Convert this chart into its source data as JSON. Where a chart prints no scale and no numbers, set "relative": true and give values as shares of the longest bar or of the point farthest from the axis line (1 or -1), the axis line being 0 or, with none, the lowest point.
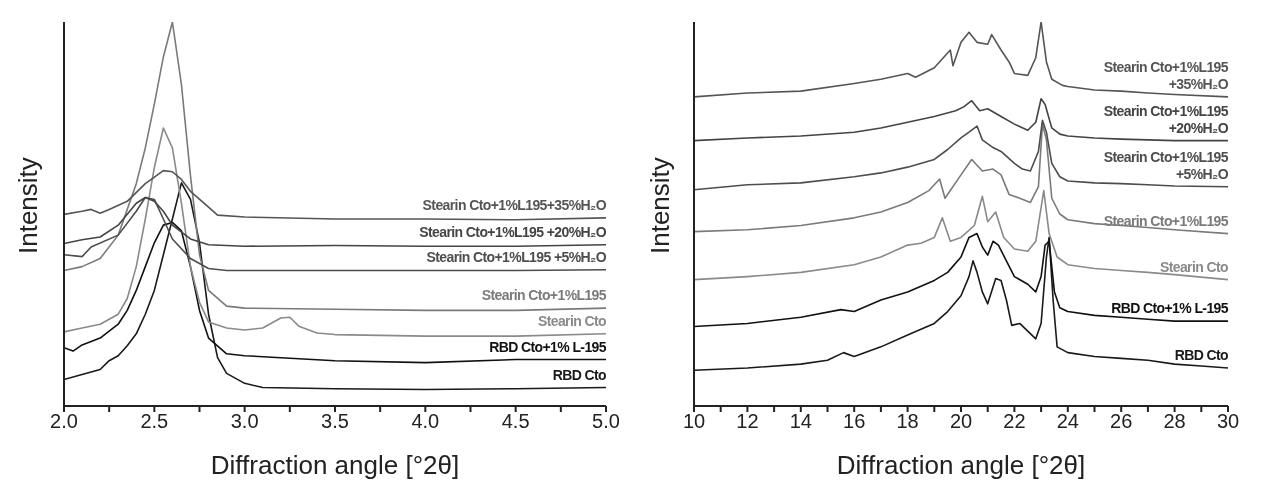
{
  "chart_data": [
    {
      "type": "line",
      "relative": true,
      "xlabel": "Diffraction angle [°2θ]",
      "ylabel": "Intensity",
      "xlim": [
        2,
        5
      ],
      "xticks": [
        {
          "value": 2,
          "label": "2.0"
        },
        {
          "value": 2.25,
          "label": null
        },
        {
          "value": 2.5,
          "label": "2.5"
        },
        {
          "value": 2.75,
          "label": null
        },
        {
          "value": 3,
          "label": "3.0"
        },
        {
          "value": 3.25,
          "label": null
        },
        {
          "value": 3.5,
          "label": "3.5"
        },
        {
          "value": 3.75,
          "label": null
        },
        {
          "value": 4,
          "label": "4.0"
        },
        {
          "value": 4.25,
          "label": null
        },
        {
          "value": 4.5,
          "label": "4.5"
        },
        {
          "value": 4.75,
          "label": null
        },
        {
          "value": 5,
          "label": "5.0"
        }
      ],
      "series": [
        {
          "name": "RBD Cto",
          "color": "#1a1a1a",
          "x": [
            2,
            2.1,
            2.2,
            2.25,
            2.3,
            2.35,
            2.4,
            2.45,
            2.5,
            2.55,
            2.6,
            2.65,
            2.7,
            2.75,
            2.8,
            2.85,
            2.9,
            3,
            3.1,
            3.5,
            4,
            4.5,
            5
          ],
          "values": [
            0.069,
            0.082,
            0.095,
            0.118,
            0.131,
            0.157,
            0.188,
            0.239,
            0.301,
            0.394,
            0.487,
            0.581,
            0.538,
            0.425,
            0.239,
            0.126,
            0.085,
            0.059,
            0.048,
            0.045,
            0.043,
            0.045,
            0.048
          ]
        },
        {
          "name": "RBD Cto+1% L-195",
          "color": "#111111",
          "x": [
            2,
            2.05,
            2.1,
            2.2,
            2.3,
            2.35,
            2.4,
            2.45,
            2.5,
            2.55,
            2.6,
            2.65,
            2.7,
            2.75,
            2.8,
            2.9,
            3,
            3.5,
            4,
            4.5,
            5
          ],
          "values": [
            0.152,
            0.143,
            0.159,
            0.177,
            0.213,
            0.249,
            0.301,
            0.363,
            0.425,
            0.471,
            0.478,
            0.456,
            0.363,
            0.249,
            0.177,
            0.136,
            0.131,
            0.118,
            0.113,
            0.121,
            0.121
          ]
        },
        {
          "name": "Stearin Cto",
          "color": "#8a8a8a",
          "x": [
            2,
            2.1,
            2.2,
            2.3,
            2.35,
            2.4,
            2.45,
            2.5,
            2.55,
            2.6,
            2.65,
            2.7,
            2.75,
            2.8,
            2.9,
            3,
            3.1,
            3.2,
            3.25,
            3.3,
            3.4,
            3.5,
            4,
            4.5,
            5
          ],
          "values": [
            0.193,
            0.203,
            0.213,
            0.239,
            0.28,
            0.363,
            0.487,
            0.621,
            0.724,
            0.672,
            0.528,
            0.363,
            0.27,
            0.219,
            0.203,
            0.198,
            0.203,
            0.229,
            0.231,
            0.208,
            0.19,
            0.186,
            0.182,
            0.182,
            0.188
          ]
        },
        {
          "name": "Stearin Cto+1%L195",
          "color": "#7a7a7a",
          "x": [
            2,
            2.1,
            2.2,
            2.3,
            2.4,
            2.45,
            2.5,
            2.55,
            2.6,
            2.65,
            2.7,
            2.75,
            2.8,
            2.9,
            3,
            3.5,
            4,
            4.5,
            5
          ],
          "values": [
            0.353,
            0.363,
            0.384,
            0.445,
            0.579,
            0.672,
            0.786,
            0.909,
            1,
            0.837,
            0.6,
            0.394,
            0.301,
            0.26,
            0.255,
            0.252,
            0.249,
            0.249,
            0.255
          ]
        },
        {
          "name": "Stearin Cto+1%L195 +5%H₂O",
          "color": "#4d4d4d",
          "x": [
            2,
            2.1,
            2.15,
            2.3,
            2.4,
            2.45,
            2.5,
            2.55,
            2.6,
            2.7,
            2.8,
            2.9,
            3,
            3.5,
            4,
            4.5,
            5
          ],
          "values": [
            0.394,
            0.389,
            0.414,
            0.445,
            0.507,
            0.543,
            0.538,
            0.487,
            0.435,
            0.384,
            0.358,
            0.353,
            0.353,
            0.353,
            0.353,
            0.353,
            0.355
          ]
        },
        {
          "name": "Stearin Cto+1%L195 +20%H₂O",
          "color": "#444444",
          "x": [
            2,
            2.1,
            2.2,
            2.3,
            2.4,
            2.45,
            2.5,
            2.55,
            2.6,
            2.7,
            2.8,
            3,
            3.5,
            4,
            4.5,
            5
          ],
          "values": [
            0.423,
            0.433,
            0.44,
            0.471,
            0.528,
            0.543,
            0.533,
            0.507,
            0.471,
            0.435,
            0.42,
            0.416,
            0.418,
            0.416,
            0.416,
            0.42
          ]
        },
        {
          "name": "Stearin Cto+1%L195+35%H₂O",
          "color": "#555555",
          "x": [
            2,
            2.1,
            2.15,
            2.2,
            2.25,
            2.35,
            2.45,
            2.55,
            2.6,
            2.65,
            2.7,
            2.8,
            2.85,
            3,
            3.5,
            4,
            4.5,
            5
          ],
          "values": [
            0.499,
            0.507,
            0.512,
            0.502,
            0.512,
            0.533,
            0.579,
            0.613,
            0.61,
            0.59,
            0.559,
            0.518,
            0.497,
            0.492,
            0.487,
            0.487,
            0.485,
            0.49
          ]
        }
      ]
    },
    {
      "type": "line",
      "relative": true,
      "xlabel": "Diffraction angle [°2θ]",
      "ylabel": "Intensity",
      "xlim": [
        10,
        30
      ],
      "xticks": [
        10,
        {
          "value": 11,
          "label": null
        },
        12,
        {
          "value": 13,
          "label": null
        },
        14,
        {
          "value": 15,
          "label": null
        },
        16,
        {
          "value": 17,
          "label": null
        },
        18,
        {
          "value": 19,
          "label": null
        },
        20,
        {
          "value": 21,
          "label": null
        },
        22,
        {
          "value": 23,
          "label": null
        },
        24,
        {
          "value": 25,
          "label": null
        },
        26,
        {
          "value": 27,
          "label": null
        },
        28,
        {
          "value": 29,
          "label": null
        },
        30
      ],
      "series": [
        {
          "name": "RBD Cto",
          "color": "#1a1a1a",
          "x": [
            10,
            12,
            14,
            15,
            15.6,
            16,
            17,
            18,
            19,
            19.5,
            20,
            20.3,
            20.45,
            20.6,
            20.8,
            21,
            21.3,
            21.5,
            21.7,
            21.9,
            22.2,
            22.5,
            22.8,
            23,
            23.2,
            23.3,
            23.45,
            23.6,
            24,
            25,
            26,
            27,
            28,
            29,
            30
          ],
          "values": [
            0.093,
            0.099,
            0.109,
            0.119,
            0.139,
            0.129,
            0.154,
            0.185,
            0.215,
            0.246,
            0.287,
            0.337,
            0.378,
            0.348,
            0.297,
            0.266,
            0.332,
            0.327,
            0.276,
            0.21,
            0.215,
            0.195,
            0.175,
            0.215,
            0.388,
            0.439,
            0.276,
            0.154,
            0.139,
            0.129,
            0.124,
            0.119,
            0.109,
            0.104,
            0.099
          ]
        },
        {
          "name": "RBD Cto+1% L-195",
          "color": "#111111",
          "x": [
            10,
            12,
            14,
            15.5,
            16,
            17,
            18,
            19,
            19.5,
            20,
            20.3,
            20.6,
            20.8,
            21,
            21.2,
            21.4,
            21.7,
            22,
            22.5,
            22.8,
            23,
            23.15,
            23.3,
            23.5,
            23.7,
            24,
            25,
            26,
            27,
            28,
            30
          ],
          "values": [
            0.207,
            0.215,
            0.231,
            0.251,
            0.246,
            0.276,
            0.297,
            0.327,
            0.348,
            0.388,
            0.439,
            0.449,
            0.414,
            0.393,
            0.429,
            0.419,
            0.378,
            0.337,
            0.317,
            0.297,
            0.337,
            0.419,
            0.429,
            0.297,
            0.256,
            0.246,
            0.236,
            0.231,
            0.226,
            0.221,
            0.221
          ]
        },
        {
          "name": "Stearin Cto",
          "color": "#8a8a8a",
          "x": [
            10,
            12,
            14,
            16,
            17,
            18,
            18.5,
            19,
            19.3,
            19.6,
            20,
            20.5,
            20.8,
            21,
            21.3,
            21.6,
            22,
            22.5,
            22.8,
            23.1,
            23.3,
            23.6,
            24,
            25,
            26,
            27,
            28,
            30
          ],
          "values": [
            0.329,
            0.337,
            0.348,
            0.368,
            0.388,
            0.419,
            0.424,
            0.439,
            0.49,
            0.429,
            0.439,
            0.47,
            0.546,
            0.48,
            0.505,
            0.439,
            0.409,
            0.403,
            0.429,
            0.561,
            0.449,
            0.388,
            0.368,
            0.358,
            0.353,
            0.348,
            0.342,
            0.329
          ]
        },
        {
          "name": "Stearin Cto+1%L195",
          "color": "#7a7a7a",
          "x": [
            10,
            12,
            14,
            16,
            17,
            18,
            18.8,
            19.2,
            19.4,
            20,
            20.4,
            20.8,
            21.2,
            21.5,
            21.8,
            22.2,
            22.6,
            22.9,
            23.05,
            23.2,
            23.4,
            23.7,
            24,
            25,
            26,
            27,
            28,
            30
          ],
          "values": [
            0.454,
            0.459,
            0.47,
            0.49,
            0.505,
            0.53,
            0.561,
            0.591,
            0.541,
            0.602,
            0.642,
            0.612,
            0.617,
            0.602,
            0.551,
            0.541,
            0.53,
            0.571,
            0.734,
            0.693,
            0.541,
            0.5,
            0.485,
            0.475,
            0.47,
            0.465,
            0.459,
            0.449
          ]
        },
        {
          "name": "Stearin Cto+1%L195 +5%H₂O",
          "color": "#4d4d4d",
          "x": [
            10,
            12,
            14,
            16,
            17,
            18,
            19,
            19.5,
            20,
            20.3,
            20.6,
            20.8,
            21.2,
            21.5,
            22,
            22.3,
            22.6,
            22.9,
            23.05,
            23.2,
            23.4,
            23.7,
            24,
            25,
            26,
            27,
            28,
            30
          ],
          "values": [
            0.563,
            0.576,
            0.581,
            0.597,
            0.607,
            0.622,
            0.642,
            0.668,
            0.698,
            0.713,
            0.729,
            0.693,
            0.673,
            0.663,
            0.632,
            0.617,
            0.612,
            0.663,
            0.744,
            0.713,
            0.632,
            0.597,
            0.586,
            0.581,
            0.579,
            0.576,
            0.573,
            0.571
          ]
        },
        {
          "name": "Stearin Cto+1%L195 +20%H₂O",
          "color": "#444444",
          "x": [
            10,
            12,
            14,
            16,
            17,
            18,
            19,
            19.8,
            20.1,
            20.4,
            20.7,
            21,
            21.5,
            22,
            22.5,
            22.8,
            23,
            23.15,
            23.4,
            23.7,
            24,
            25,
            26,
            27,
            28,
            30
          ],
          "values": [
            0.691,
            0.698,
            0.703,
            0.713,
            0.724,
            0.739,
            0.754,
            0.769,
            0.779,
            0.795,
            0.769,
            0.774,
            0.754,
            0.734,
            0.718,
            0.739,
            0.8,
            0.785,
            0.724,
            0.708,
            0.703,
            0.698,
            0.695,
            0.693,
            0.691,
            0.691
          ]
        },
        {
          "name": "Stearin Cto+1%L195 +35%H₂O",
          "color": "#555555",
          "x": [
            10,
            12,
            14,
            16,
            17,
            18,
            18.3,
            19,
            19.6,
            19.7,
            20,
            20.3,
            20.6,
            21,
            21.15,
            21.5,
            21.8,
            22,
            22.5,
            22.8,
            23,
            23.2,
            23.4,
            23.8,
            24,
            25,
            26,
            27,
            28,
            30
          ],
          "values": [
            0.805,
            0.815,
            0.82,
            0.84,
            0.851,
            0.866,
            0.856,
            0.881,
            0.927,
            0.886,
            0.947,
            0.973,
            0.947,
            0.942,
            0.967,
            0.927,
            0.896,
            0.866,
            0.861,
            0.907,
            1,
            0.896,
            0.851,
            0.835,
            0.832,
            0.823,
            0.82,
            0.815,
            0.811,
            0.805
          ]
        }
      ]
    }
  ]
}
